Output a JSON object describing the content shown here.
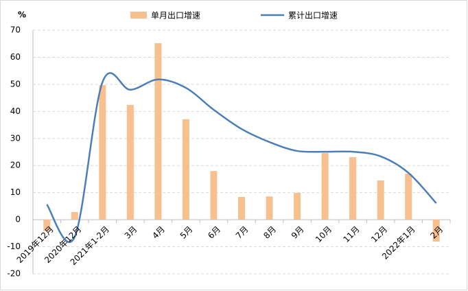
{
  "chart_data": {
    "type": "bar_line",
    "y_unit": "%",
    "categories": [
      "2019年12月",
      "2020年12月",
      "2021年1-2月",
      "3月",
      "4月",
      "5月",
      "6月",
      "7月",
      "8月",
      "9月",
      "10月",
      "11月",
      "12月",
      "2022年1月",
      "2月"
    ],
    "series": [
      {
        "name": "单月出口增速",
        "type": "bar",
        "color": "#f9c08f",
        "values": [
          -4.2,
          2.8,
          49.7,
          42.4,
          65.2,
          37.1,
          18.0,
          8.4,
          8.6,
          9.9,
          24.6,
          23.1,
          14.5,
          17.0,
          -8.1
        ]
      },
      {
        "name": "累计出口增速",
        "type": "line",
        "color": "#4a7ebb",
        "values": [
          5.6,
          -6.4,
          50.8,
          48.0,
          51.8,
          48.7,
          40.6,
          33.5,
          28.7,
          25.4,
          25.1,
          25.1,
          23.4,
          17.3,
          6.1
        ]
      }
    ],
    "ylim": [
      -20,
      70
    ],
    "yticks": [
      -20,
      -10,
      0,
      10,
      20,
      30,
      40,
      50,
      60,
      70
    ],
    "grid": true
  }
}
